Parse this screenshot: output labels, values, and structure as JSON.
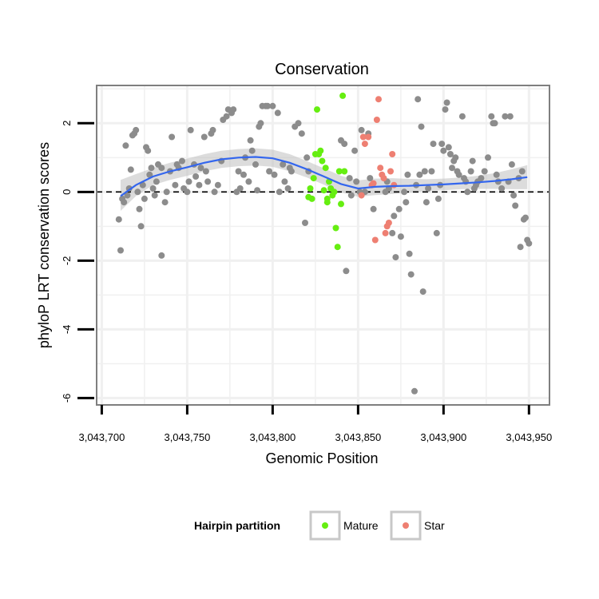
{
  "chart_data": {
    "type": "scatter",
    "title": "Conservation",
    "xlabel": "Genomic Position",
    "ylabel": "phyloP LRT conservation scores",
    "xlim": [
      3043697,
      3043962
    ],
    "ylim": [
      -6.2,
      3.1
    ],
    "x_ticks": [
      3043700,
      3043750,
      3043800,
      3043850,
      3043900,
      3043950
    ],
    "x_tick_labels": [
      "3,043,700",
      "3,043,750",
      "3,043,800",
      "3,043,850",
      "3,043,900",
      "3,043,950"
    ],
    "y_ticks": [
      -6,
      -4,
      -2,
      0,
      2
    ],
    "y_tick_labels": [
      "-6",
      "-4",
      "-2",
      "0",
      "2"
    ],
    "reference_line": {
      "y": 0,
      "style": "dashed"
    },
    "colors": {
      "background": "#ffffff",
      "Other": "#8c8c8c",
      "Mature": "#66ee11",
      "Star": "#ee7f72",
      "smooth": "#3366ee",
      "ribbon": "#bfbfbf",
      "grid": "#f0f0f0",
      "frame": "#7f7f7f"
    },
    "legend": {
      "title": "Hairpin partition",
      "placement": "bottom",
      "entries": [
        {
          "label": "Mature",
          "color": "#66ee11"
        },
        {
          "label": "Star",
          "color": "#ee7f72"
        }
      ]
    },
    "smooth": {
      "x": [
        3043711,
        3043720,
        3043730,
        3043740,
        3043750,
        3043760,
        3043770,
        3043780,
        3043790,
        3043800,
        3043810,
        3043820,
        3043830,
        3043840,
        3043850,
        3043860,
        3043870,
        3043880,
        3043890,
        3043900,
        3043910,
        3043920,
        3043930,
        3043940,
        3043949
      ],
      "y": [
        -0.12,
        0.2,
        0.45,
        0.6,
        0.72,
        0.85,
        0.95,
        1.0,
        1.02,
        0.98,
        0.85,
        0.66,
        0.45,
        0.23,
        0.1,
        0.15,
        0.17,
        0.18,
        0.2,
        0.22,
        0.25,
        0.28,
        0.32,
        0.37,
        0.43
      ],
      "upper": [
        0.35,
        0.52,
        0.7,
        0.85,
        0.97,
        1.1,
        1.2,
        1.25,
        1.27,
        1.23,
        1.1,
        0.9,
        0.69,
        0.47,
        0.34,
        0.39,
        0.4,
        0.38,
        0.37,
        0.39,
        0.42,
        0.47,
        0.55,
        0.66,
        0.78
      ],
      "lower": [
        -0.55,
        -0.12,
        0.2,
        0.35,
        0.47,
        0.6,
        0.7,
        0.75,
        0.77,
        0.73,
        0.6,
        0.42,
        0.21,
        -0.01,
        -0.14,
        -0.09,
        -0.06,
        -0.02,
        0.03,
        0.05,
        0.08,
        0.09,
        0.09,
        0.08,
        0.08
      ]
    },
    "series": [
      {
        "name": "Other",
        "points": [
          [
            3043710,
            -0.8
          ],
          [
            3043711,
            -1.7
          ],
          [
            3043712,
            -0.2
          ],
          [
            3043713,
            -0.3
          ],
          [
            3043714,
            1.35
          ],
          [
            3043715,
            -0.1
          ],
          [
            3043716,
            0.1
          ],
          [
            3043717,
            0.65
          ],
          [
            3043718,
            1.65
          ],
          [
            3043719,
            1.7
          ],
          [
            3043720,
            1.8
          ],
          [
            3043721,
            0.0
          ],
          [
            3043722,
            -0.5
          ],
          [
            3043723,
            -1.0
          ],
          [
            3043724,
            0.2
          ],
          [
            3043725,
            -0.2
          ],
          [
            3043726,
            1.3
          ],
          [
            3043727,
            1.2
          ],
          [
            3043728,
            0.5
          ],
          [
            3043729,
            0.7
          ],
          [
            3043730,
            0.1
          ],
          [
            3043731,
            -0.1
          ],
          [
            3043732,
            0.3
          ],
          [
            3043733,
            0.8
          ],
          [
            3043735,
            -1.85
          ],
          [
            3043735,
            0.7
          ],
          [
            3043737,
            -0.3
          ],
          [
            3043738,
            0.0
          ],
          [
            3043740,
            0.6
          ],
          [
            3043741,
            1.6
          ],
          [
            3043743,
            0.2
          ],
          [
            3043744,
            0.8
          ],
          [
            3043745,
            0.7
          ],
          [
            3043747,
            0.9
          ],
          [
            3043748,
            0.1
          ],
          [
            3043750,
            0.0
          ],
          [
            3043751,
            0.3
          ],
          [
            3043752,
            1.8
          ],
          [
            3043754,
            0.8
          ],
          [
            3043755,
            0.45
          ],
          [
            3043757,
            0.2
          ],
          [
            3043758,
            0.7
          ],
          [
            3043760,
            1.6
          ],
          [
            3043761,
            0.6
          ],
          [
            3043762,
            0.3
          ],
          [
            3043764,
            1.7
          ],
          [
            3043765,
            1.8
          ],
          [
            3043766,
            0.0
          ],
          [
            3043768,
            0.2
          ],
          [
            3043770,
            0.9
          ],
          [
            3043771,
            2.1
          ],
          [
            3043773,
            2.2
          ],
          [
            3043774,
            2.4
          ],
          [
            3043776,
            2.3
          ],
          [
            3043777,
            2.4
          ],
          [
            3043779,
            0.0
          ],
          [
            3043780,
            0.6
          ],
          [
            3043781,
            0.1
          ],
          [
            3043783,
            0.5
          ],
          [
            3043784,
            1.0
          ],
          [
            3043786,
            0.3
          ],
          [
            3043787,
            1.5
          ],
          [
            3043788,
            1.2
          ],
          [
            3043790,
            0.8
          ],
          [
            3043791,
            0.05
          ],
          [
            3043792,
            1.9
          ],
          [
            3043793,
            2.0
          ],
          [
            3043794,
            2.5
          ],
          [
            3043796,
            2.5
          ],
          [
            3043797,
            2.5
          ],
          [
            3043798,
            0.6
          ],
          [
            3043800,
            2.5
          ],
          [
            3043801,
            0.5
          ],
          [
            3043803,
            2.3
          ],
          [
            3043804,
            0.0
          ],
          [
            3043806,
            0.8
          ],
          [
            3043807,
            0.3
          ],
          [
            3043809,
            0.1
          ],
          [
            3043810,
            0.7
          ],
          [
            3043811,
            0.6
          ],
          [
            3043813,
            1.9
          ],
          [
            3043815,
            2.0
          ],
          [
            3043817,
            1.7
          ],
          [
            3043819,
            -0.9
          ],
          [
            3043820,
            1.0
          ],
          [
            3043821,
            0.6
          ],
          [
            3043840,
            1.5
          ],
          [
            3043842,
            1.4
          ],
          [
            3043843,
            -2.3
          ],
          [
            3043845,
            0.4
          ],
          [
            3043846,
            -0.1
          ],
          [
            3043848,
            1.2
          ],
          [
            3043849,
            0.3
          ],
          [
            3043851,
            0.0
          ],
          [
            3043852,
            1.8
          ],
          [
            3043854,
            0.0
          ],
          [
            3043856,
            1.7
          ],
          [
            3043857,
            0.4
          ],
          [
            3043859,
            -0.5
          ],
          [
            3043866,
            0.0
          ],
          [
            3043867,
            0.3
          ],
          [
            3043868,
            0.1
          ],
          [
            3043870,
            -1.2
          ],
          [
            3043871,
            -0.7
          ],
          [
            3043872,
            -1.9
          ],
          [
            3043874,
            -0.5
          ],
          [
            3043875,
            -1.3
          ],
          [
            3043877,
            0.0
          ],
          [
            3043878,
            -0.3
          ],
          [
            3043879,
            0.5
          ],
          [
            3043880,
            -1.8
          ],
          [
            3043881,
            -2.4
          ],
          [
            3043883,
            -5.8
          ],
          [
            3043884,
            0.2
          ],
          [
            3043885,
            2.7
          ],
          [
            3043886,
            0.5
          ],
          [
            3043887,
            1.9
          ],
          [
            3043888,
            -2.9
          ],
          [
            3043889,
            0.6
          ],
          [
            3043890,
            -0.3
          ],
          [
            3043891,
            0.1
          ],
          [
            3043893,
            0.6
          ],
          [
            3043894,
            1.4
          ],
          [
            3043896,
            -1.2
          ],
          [
            3043897,
            -0.2
          ],
          [
            3043898,
            0.2
          ],
          [
            3043899,
            1.4
          ],
          [
            3043900,
            1.2
          ],
          [
            3043901,
            2.4
          ],
          [
            3043902,
            2.6
          ],
          [
            3043903,
            1.3
          ],
          [
            3043904,
            1.1
          ],
          [
            3043905,
            0.7
          ],
          [
            3043906,
            0.9
          ],
          [
            3043907,
            1.0
          ],
          [
            3043908,
            0.6
          ],
          [
            3043909,
            0.5
          ],
          [
            3043911,
            2.2
          ],
          [
            3043912,
            0.4
          ],
          [
            3043913,
            0.3
          ],
          [
            3043914,
            0.0
          ],
          [
            3043916,
            0.6
          ],
          [
            3043917,
            0.9
          ],
          [
            3043918,
            0.1
          ],
          [
            3043919,
            0.2
          ],
          [
            3043920,
            0.3
          ],
          [
            3043922,
            0.4
          ],
          [
            3043924,
            0.6
          ],
          [
            3043926,
            1.0
          ],
          [
            3043928,
            2.2
          ],
          [
            3043929,
            2.0
          ],
          [
            3043930,
            2.0
          ],
          [
            3043931,
            0.5
          ],
          [
            3043932,
            0.3
          ],
          [
            3043934,
            0.1
          ],
          [
            3043936,
            2.2
          ],
          [
            3043938,
            0.3
          ],
          [
            3043939,
            2.2
          ],
          [
            3043940,
            0.8
          ],
          [
            3043941,
            -0.1
          ],
          [
            3043942,
            -0.4
          ],
          [
            3043944,
            0.4
          ],
          [
            3043945,
            -1.6
          ],
          [
            3043946,
            0.6
          ],
          [
            3043947,
            -0.8
          ],
          [
            3043948,
            -0.75
          ],
          [
            3043949,
            -1.4
          ],
          [
            3043950,
            -1.5
          ]
        ]
      },
      {
        "name": "Mature",
        "points": [
          [
            3043821,
            -0.15
          ],
          [
            3043822,
            0.1
          ],
          [
            3043823,
            -0.2
          ],
          [
            3043824,
            0.4
          ],
          [
            3043825,
            1.1
          ],
          [
            3043826,
            2.4
          ],
          [
            3043827,
            1.1
          ],
          [
            3043828,
            1.2
          ],
          [
            3043829,
            0.9
          ],
          [
            3043830,
            0.05
          ],
          [
            3043831,
            0.7
          ],
          [
            3043832,
            -0.3
          ],
          [
            3043832,
            -0.2
          ],
          [
            3043833,
            0.3
          ],
          [
            3043834,
            0.1
          ],
          [
            3043835,
            -0.1
          ],
          [
            3043836,
            0.0
          ],
          [
            3043837,
            -1.05
          ],
          [
            3043838,
            -1.6
          ],
          [
            3043839,
            0.6
          ],
          [
            3043840,
            -0.35
          ],
          [
            3043841,
            2.8
          ],
          [
            3043842,
            0.6
          ]
        ]
      },
      {
        "name": "Star",
        "points": [
          [
            3043852,
            -0.1
          ],
          [
            3043853,
            1.6
          ],
          [
            3043854,
            1.4
          ],
          [
            3043856,
            1.6
          ],
          [
            3043858,
            0.2
          ],
          [
            3043859,
            0.25
          ],
          [
            3043860,
            -1.4
          ],
          [
            3043861,
            2.1
          ],
          [
            3043862,
            2.7
          ],
          [
            3043863,
            0.7
          ],
          [
            3043864,
            0.5
          ],
          [
            3043865,
            0.4
          ],
          [
            3043866,
            -1.2
          ],
          [
            3043867,
            -1.0
          ],
          [
            3043868,
            -0.9
          ],
          [
            3043869,
            0.6
          ],
          [
            3043870,
            1.1
          ],
          [
            3043871,
            0.2
          ]
        ]
      }
    ]
  }
}
